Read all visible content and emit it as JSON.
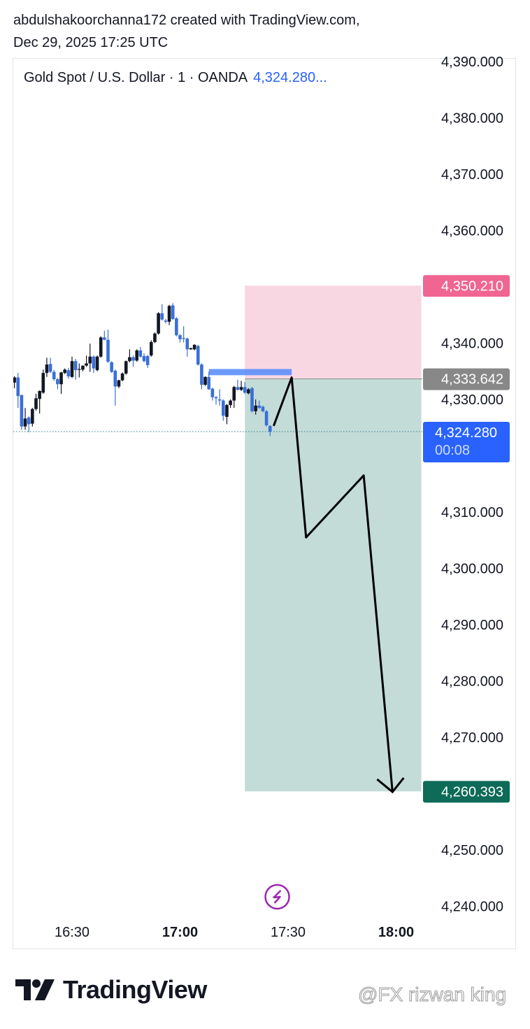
{
  "header": {
    "line1": "abdulshakoorchanna172 created with TradingView.com,",
    "line2": "Dec 29, 2025 17:25 UTC"
  },
  "legend": {
    "symbol": "Gold Spot / U.S. Dollar · 1 · OANDA",
    "price": "4,324.280..."
  },
  "branding": {
    "logo": "TradingView",
    "watermark": "@FX rizwan king"
  },
  "chart_data": {
    "type": "candlestick",
    "interval": "1m",
    "start_time": "16:14",
    "ohlc_fields": [
      "open",
      "high",
      "low",
      "close"
    ],
    "candles": [
      [
        4333.0,
        4334.1,
        4332.0,
        4333.9
      ],
      [
        4333.9,
        4334.7,
        4328.5,
        4330.6
      ],
      [
        4330.8,
        4330.8,
        4324.6,
        4325.2
      ],
      [
        4325.2,
        4328.5,
        4324.6,
        4326.6
      ],
      [
        4326.8,
        4327.0,
        4324.2,
        4325.6
      ],
      [
        4325.7,
        4328.5,
        4325.2,
        4328.3
      ],
      [
        4328.3,
        4331.0,
        4328.0,
        4330.2
      ],
      [
        4330.1,
        4331.6,
        4327.5,
        4331.5
      ],
      [
        4331.2,
        4335.3,
        4331.0,
        4334.7
      ],
      [
        4334.7,
        4337.4,
        4334.0,
        4336.2
      ],
      [
        4336.3,
        4337.4,
        4334.7,
        4334.9
      ],
      [
        4334.9,
        4335.2,
        4333.3,
        4333.6
      ],
      [
        4333.6,
        4333.8,
        4331.8,
        4332.7
      ],
      [
        4332.7,
        4334.9,
        4331.0,
        4334.8
      ],
      [
        4334.7,
        4335.5,
        4334.5,
        4335.3
      ],
      [
        4335.2,
        4335.6,
        4333.7,
        4334.1
      ],
      [
        4334.0,
        4337.6,
        4333.8,
        4336.8
      ],
      [
        4336.8,
        4337.2,
        4333.5,
        4335.2
      ],
      [
        4335.3,
        4336.4,
        4333.9,
        4335.4
      ],
      [
        4335.3,
        4336.0,
        4335.0,
        4336.0
      ],
      [
        4336.0,
        4337.8,
        4335.8,
        4336.4
      ],
      [
        4336.4,
        4339.9,
        4334.9,
        4337.6
      ],
      [
        4337.6,
        4337.8,
        4334.7,
        4335.5
      ],
      [
        4335.2,
        4337.8,
        4335.0,
        4337.6
      ],
      [
        4337.6,
        4341.2,
        4337.4,
        4341.0
      ],
      [
        4341.0,
        4342.2,
        4340.5,
        4340.6
      ],
      [
        4340.6,
        4342.4,
        4336.5,
        4336.7
      ],
      [
        4336.6,
        4336.8,
        4334.7,
        4334.9
      ],
      [
        4335.1,
        4335.3,
        4328.9,
        4332.3
      ],
      [
        4332.3,
        4333.5,
        4332.0,
        4333.4
      ],
      [
        4333.4,
        4334.8,
        4333.2,
        4334.6
      ],
      [
        4334.6,
        4336.9,
        4334.4,
        4336.8
      ],
      [
        4336.8,
        4338.9,
        4336.6,
        4337.5
      ],
      [
        4337.5,
        4337.8,
        4335.8,
        4336.9
      ],
      [
        4336.9,
        4338.9,
        4336.7,
        4338.7
      ],
      [
        4338.7,
        4339.3,
        4337.4,
        4337.6
      ],
      [
        4337.7,
        4338.2,
        4336.6,
        4336.8
      ],
      [
        4337.7,
        4337.9,
        4335.6,
        4336.1
      ],
      [
        4337.8,
        4340.5,
        4337.6,
        4340.2
      ],
      [
        4340.2,
        4341.9,
        4340.0,
        4341.7
      ],
      [
        4341.7,
        4345.5,
        4341.5,
        4345.3
      ],
      [
        4345.3,
        4346.9,
        4344.0,
        4344.2
      ],
      [
        4344.0,
        4344.3,
        4343.5,
        4343.8
      ],
      [
        4343.8,
        4346.8,
        4343.2,
        4346.6
      ],
      [
        4346.7,
        4347.1,
        4344.1,
        4344.3
      ],
      [
        4344.4,
        4344.6,
        4341.2,
        4341.4
      ],
      [
        4341.4,
        4341.6,
        4340.1,
        4340.7
      ],
      [
        4340.9,
        4343.0,
        4340.1,
        4340.8
      ],
      [
        4340.8,
        4341.0,
        4337.6,
        4338.9
      ],
      [
        4338.9,
        4339.2,
        4338.8,
        4339.1
      ],
      [
        4338.9,
        4339.8,
        4338.7,
        4339.7
      ],
      [
        4339.5,
        4339.7,
        4336.0,
        4336.2
      ],
      [
        4336.2,
        4336.4,
        4331.8,
        4332.6
      ],
      [
        4332.6,
        4334.1,
        4332.4,
        4334.0
      ],
      [
        4334.0,
        4334.9,
        4331.7,
        4331.8
      ],
      [
        4331.9,
        4332.1,
        4329.8,
        4330.4
      ],
      [
        4330.4,
        4330.6,
        4329.1,
        4330.2
      ],
      [
        4330.0,
        4331.8,
        4328.9,
        4329.8
      ],
      [
        4329.8,
        4330.0,
        4326.2,
        4327.1
      ],
      [
        4326.9,
        4329.2,
        4325.6,
        4329.0
      ],
      [
        4329.0,
        4330.0,
        4328.5,
        4329.8
      ],
      [
        4329.8,
        4332.4,
        4328.5,
        4332.2
      ],
      [
        4332.2,
        4333.5,
        4331.6,
        4331.7
      ],
      [
        4331.7,
        4333.3,
        4331.5,
        4332.2
      ],
      [
        4332.2,
        4333.1,
        4331.0,
        4331.2
      ],
      [
        4331.1,
        4332.0,
        4330.9,
        4331.8
      ],
      [
        4332.0,
        4332.2,
        4327.7,
        4327.9
      ],
      [
        4327.9,
        4330.0,
        4327.3,
        4328.9
      ],
      [
        4328.9,
        4329.8,
        4328.3,
        4328.5
      ],
      [
        4328.7,
        4328.9,
        4327.7,
        4327.9
      ],
      [
        4327.9,
        4328.1,
        4325.2,
        4325.4
      ],
      [
        4325.3,
        4325.4,
        4323.5,
        4324.28
      ]
    ],
    "colors": {
      "up": "#131722",
      "down": "#3a6fd8"
    },
    "y_axis": {
      "range": [
        4237,
        4390.6
      ],
      "ticks": [
        "4,390.000",
        "4,380.000",
        "4,370.000",
        "4,360.000",
        "4,340.000",
        "4,330.000",
        "4,310.000",
        "4,300.000",
        "4,290.000",
        "4,280.000",
        "4,270.000",
        "4,250.000",
        "4,240.000"
      ],
      "tick_values": [
        4390,
        4380,
        4370,
        4360,
        4340,
        4330,
        4310,
        4300,
        4290,
        4280,
        4270,
        4250,
        4240
      ]
    },
    "x_axis": {
      "ticks": [
        {
          "label": "16:30",
          "bold": false
        },
        {
          "label": "17:00",
          "bold": true
        },
        {
          "label": "17:30",
          "bold": false
        },
        {
          "label": "18:00",
          "bold": true
        }
      ]
    },
    "last_price": {
      "value": 4324.28,
      "label": "4,324.280",
      "countdown": "00:08",
      "color": "#2962ff"
    },
    "short_position": {
      "start_time": "17:18",
      "end_time": "18:07",
      "entry": 4333.642,
      "stop": 4350.21,
      "target": 4260.393,
      "entry_label": "4,333.642",
      "stop_label": "4,350.210",
      "target_label": "4,260.393",
      "stop_color": "#f8d7e3",
      "target_color": "#c3dcd8",
      "stop_badge_color": "#f06591",
      "entry_badge_color": "#888888",
      "target_badge_color": "#0d6b57"
    },
    "zone_rectangle": {
      "start_time": "17:08",
      "end_time": "17:31",
      "top": 4335.4,
      "bottom": 4334.3,
      "color": "#5b8ff9"
    },
    "drawn_path": [
      {
        "time": "17:26",
        "price": 4325.3
      },
      {
        "time": "17:31",
        "price": 4333.9
      },
      {
        "time": "17:35",
        "price": 4305.5
      },
      {
        "time": "17:51",
        "price": 4316.5
      },
      {
        "time": "17:59",
        "price": 4260.3
      }
    ],
    "event_icon": {
      "name": "lightning-icon",
      "time": "17:27",
      "color": "#9c27b0"
    }
  }
}
